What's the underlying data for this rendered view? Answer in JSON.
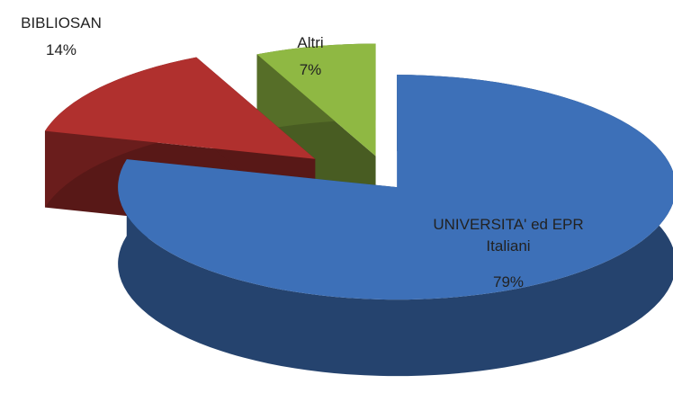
{
  "chart_data": {
    "type": "pie",
    "categories": [
      "UNIVERSITA' ed EPR Italiani",
      "BIBLIOSAN",
      "Altri"
    ],
    "values": [
      79,
      14,
      7
    ],
    "value_labels": [
      "79%",
      "14%",
      "7%"
    ],
    "colors": [
      "#3d70b8",
      "#b0302e",
      "#8fb843"
    ]
  }
}
